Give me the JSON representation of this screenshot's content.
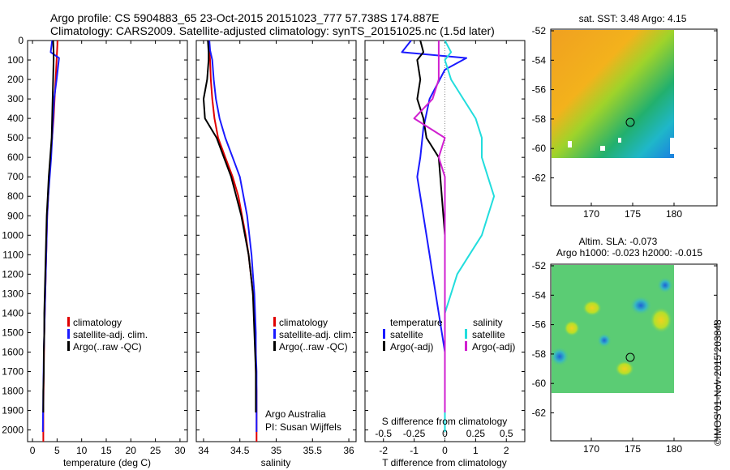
{
  "header": {
    "line1": "Argo profile: CS 5904883_65 23-Oct-2015 20151023_777 57.738S 174.887E",
    "line2": "Climatology: CARS2009. Satellite-adjusted climatology: synTS_20151025.nc (1.5d later)"
  },
  "colors": {
    "climatology": "#e00000",
    "satellite": "#1a1aff",
    "argo": "#000000",
    "satellite_sal": "#22dddd",
    "argo_sal": "#d020d0"
  },
  "depth_axis": {
    "ticks": [
      "0",
      "100",
      "200",
      "300",
      "400",
      "500",
      "600",
      "700",
      "800",
      "900",
      "1000",
      "1100",
      "1200",
      "1300",
      "1400",
      "1500",
      "1600",
      "1700",
      "1800",
      "1900",
      "2000"
    ],
    "values": [
      0,
      100,
      200,
      300,
      400,
      500,
      600,
      700,
      800,
      900,
      1000,
      1100,
      1200,
      1300,
      1400,
      1500,
      1600,
      1700,
      1800,
      1900,
      2000
    ]
  },
  "panels": {
    "temperature": {
      "xlabel": "temperature (deg C)",
      "xticks": [
        "0",
        "5",
        "10",
        "15",
        "20",
        "25",
        "30"
      ],
      "legend": [
        "climatology",
        "satellite-adj. clim.",
        "Argo(..raw -QC)"
      ]
    },
    "salinity": {
      "xlabel": "salinity",
      "xticks": [
        "34",
        "34.5",
        "35",
        "35.5",
        "36"
      ],
      "legend": [
        "climatology",
        "satellite-adj. clim.",
        "Argo(..raw -QC)"
      ],
      "note1": "Argo Australia",
      "note2": "PI: Susan Wijffels"
    },
    "difference": {
      "xlabel": "T difference from climatology",
      "xticks": [
        "-2",
        "-1",
        "0",
        "1",
        "2"
      ],
      "top_label": "S difference from climatology",
      "top_ticks": [
        "-0.5",
        "-0.25",
        "0",
        "0.25",
        "0.5"
      ],
      "legend_temp_title": "temperature",
      "legend_sal_title": "salinity",
      "legend_temp": [
        "satellite",
        "Argo(-adj)"
      ],
      "legend_sal": [
        "satellite",
        "Argo(-adj)"
      ]
    },
    "sst_map": {
      "title": "sat. SST: 3.48  Argo: 4.15",
      "lat_ticks": [
        "-52",
        "-54",
        "-56",
        "-58",
        "-60",
        "-62"
      ],
      "lon_ticks": [
        "170",
        "175",
        "180"
      ]
    },
    "sla_map": {
      "title1": "Altim. SLA: -0.073",
      "title2": "Argo h1000: -0.023  h2000: -0.015",
      "lat_ticks": [
        "-52",
        "-54",
        "-56",
        "-58",
        "-60",
        "-62"
      ],
      "lon_ticks": [
        "170",
        "175",
        "180"
      ]
    }
  },
  "credit": "©IMOS 01-Nov-2015 203848",
  "chart_data": [
    {
      "type": "line",
      "title": "",
      "xlabel": "temperature (deg C)",
      "ylabel": "",
      "xlim": [
        -1,
        31.5
      ],
      "ylim": [
        2060,
        0
      ],
      "series": [
        {
          "name": "climatology",
          "x": [
            5.1,
            5.0,
            4.9,
            4.7,
            4.5,
            4.3,
            4.0,
            3.7,
            3.4,
            3.2,
            3.0,
            2.9,
            2.8,
            2.7,
            2.6,
            2.5,
            2.4,
            2.35,
            2.3,
            2.25,
            2.2,
            2.2
          ],
          "y": [
            0,
            50,
            100,
            200,
            300,
            400,
            500,
            600,
            700,
            800,
            900,
            1000,
            1100,
            1200,
            1300,
            1400,
            1500,
            1600,
            1700,
            1800,
            1900,
            2060
          ]
        },
        {
          "name": "satellite-adj. clim.",
          "x": [
            4.0,
            3.7,
            5.4,
            4.9,
            4.4,
            4.2,
            4.0,
            3.8,
            3.5,
            3.2,
            3.0,
            2.9,
            2.8,
            2.7,
            2.6,
            2.5,
            2.4,
            2.3,
            2.25,
            2.2,
            2.15,
            2.1
          ],
          "y": [
            0,
            60,
            90,
            200,
            300,
            400,
            500,
            600,
            700,
            800,
            900,
            1000,
            1100,
            1200,
            1300,
            1400,
            1500,
            1600,
            1700,
            1800,
            1900,
            2010
          ]
        },
        {
          "name": "Argo(..raw -QC)",
          "x": [
            4.2,
            4.3,
            4.3,
            4.2,
            4.1,
            4.0,
            3.9,
            3.6,
            3.3,
            3.1,
            2.9,
            2.8,
            2.7,
            2.6,
            2.5,
            2.4,
            2.4,
            2.3,
            2.3,
            2.2,
            2.2
          ],
          "y": [
            0,
            60,
            100,
            200,
            300,
            400,
            500,
            600,
            700,
            800,
            900,
            1000,
            1100,
            1200,
            1300,
            1400,
            1500,
            1600,
            1700,
            1800,
            1910
          ]
        }
      ]
    },
    {
      "type": "line",
      "title": "",
      "xlabel": "salinity",
      "ylabel": "",
      "xlim": [
        33.9,
        36.1
      ],
      "ylim": [
        2060,
        0
      ],
      "series": [
        {
          "name": "climatology",
          "x": [
            34.07,
            34.08,
            34.09,
            34.1,
            34.12,
            34.15,
            34.2,
            34.3,
            34.4,
            34.48,
            34.53,
            34.58,
            34.62,
            34.65,
            34.68,
            34.7,
            34.71,
            34.72,
            34.72,
            34.73,
            34.73,
            34.73
          ],
          "y": [
            0,
            50,
            100,
            200,
            300,
            400,
            500,
            600,
            700,
            800,
            900,
            1000,
            1100,
            1200,
            1300,
            1400,
            1500,
            1600,
            1700,
            1800,
            1900,
            2060
          ]
        },
        {
          "name": "satellite-adj. clim.",
          "x": [
            34.08,
            34.09,
            34.12,
            34.14,
            34.17,
            34.22,
            34.3,
            34.4,
            34.5,
            34.55,
            34.6,
            34.63,
            34.66,
            34.68,
            34.7,
            34.71,
            34.72,
            34.72,
            34.73,
            34.73,
            34.73,
            34.73
          ],
          "y": [
            0,
            50,
            100,
            200,
            300,
            400,
            500,
            600,
            700,
            800,
            900,
            1000,
            1100,
            1200,
            1300,
            1400,
            1500,
            1600,
            1700,
            1800,
            1900,
            2010
          ]
        },
        {
          "name": "Argo(..raw -QC)",
          "x": [
            34.06,
            34.07,
            34.07,
            34.05,
            34.0,
            34.02,
            34.18,
            34.28,
            34.38,
            34.45,
            34.52,
            34.57,
            34.62,
            34.65,
            34.68,
            34.69,
            34.7,
            34.71,
            34.72,
            34.72,
            34.72
          ],
          "y": [
            0,
            60,
            100,
            200,
            300,
            400,
            500,
            600,
            700,
            800,
            900,
            1000,
            1100,
            1200,
            1300,
            1400,
            1500,
            1600,
            1700,
            1800,
            1910
          ]
        }
      ]
    },
    {
      "type": "line",
      "title": "",
      "xlabel": "T difference from climatology",
      "ylabel": "",
      "xlim": [
        -2.6,
        2.6
      ],
      "ylim": [
        2060,
        0
      ],
      "series": [
        {
          "name": "temperature satellite",
          "x": [
            -1.1,
            -1.4,
            0.7,
            0.0,
            -0.5,
            -0.7,
            -0.8,
            -0.9,
            -0.8,
            -0.7,
            -0.6,
            -0.5,
            -0.4,
            -0.3,
            -0.2,
            -0.1,
            0.0,
            0.0,
            0.0,
            0.0,
            0.0
          ],
          "y": [
            0,
            60,
            90,
            150,
            300,
            450,
            600,
            700,
            800,
            900,
            1000,
            1100,
            1200,
            1300,
            1400,
            1500,
            1600,
            1700,
            1800,
            1900,
            2010
          ]
        },
        {
          "name": "temperature Argo(-adj)",
          "x": [
            -0.8,
            -0.7,
            -0.9,
            -0.8,
            -0.9,
            -0.7,
            -0.6,
            -0.2,
            -0.15,
            -0.1,
            -0.05,
            0.0,
            0.0,
            0.0,
            0.0,
            0.0,
            0.0,
            0.0
          ],
          "y": [
            0,
            60,
            100,
            200,
            300,
            400,
            500,
            600,
            700,
            800,
            900,
            1000,
            1200,
            1400,
            1500,
            1600,
            1800,
            1910
          ]
        },
        {
          "name": "salinity satellite",
          "x": [
            0.0,
            0.05,
            0.0,
            0.05,
            0.15,
            0.25,
            0.3,
            0.3,
            0.35,
            0.4,
            0.35,
            0.3,
            0.2,
            0.1,
            0.05,
            0.0,
            0.0,
            0.0
          ],
          "y": [
            0,
            60,
            100,
            200,
            300,
            400,
            500,
            600,
            700,
            800,
            900,
            1000,
            1100,
            1200,
            1300,
            1400,
            1600,
            2010
          ]
        },
        {
          "name": "salinity Argo(-adj)",
          "x": [
            -0.05,
            -0.05,
            -0.05,
            -0.05,
            -0.1,
            -0.25,
            0.0,
            -0.05,
            0.0,
            0.0,
            0.0,
            0.0,
            0.0,
            0.0
          ],
          "y": [
            0,
            60,
            100,
            200,
            300,
            400,
            500,
            600,
            700,
            800,
            1000,
            1400,
            1800,
            1910
          ]
        }
      ]
    }
  ]
}
